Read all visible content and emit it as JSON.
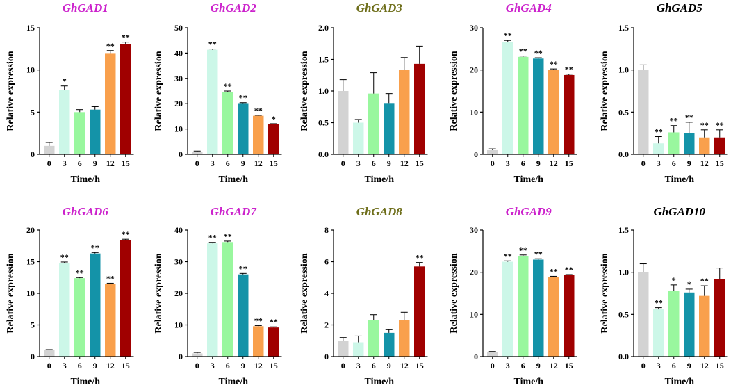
{
  "figure": {
    "colors": [
      "#d3d3d3",
      "#ccf7e8",
      "#99f79e",
      "#1493a8",
      "#f9a04c",
      "#a00000"
    ],
    "title_colors": {
      "magenta": "#cc22cc",
      "olive": "#6e6e1a",
      "black": "#000000"
    }
  },
  "chart_data": [
    {
      "type": "bar",
      "title": "GhGAD1",
      "title_color": "magenta",
      "xlabel": "Time/h",
      "ylabel": "Relative expression",
      "categories": [
        "0",
        "3",
        "6",
        "9",
        "12",
        "15"
      ],
      "values": [
        1.0,
        7.6,
        5.0,
        5.3,
        12.0,
        13.1
      ],
      "errors": [
        0.4,
        0.5,
        0.3,
        0.35,
        0.3,
        0.2
      ],
      "significance": [
        "",
        "*",
        "",
        "",
        "**",
        "**"
      ],
      "ylim": [
        0,
        15
      ],
      "yticks": [
        0,
        5,
        10,
        15
      ],
      "ytick_labels": [
        "0",
        "5",
        "10",
        "15"
      ]
    },
    {
      "type": "bar",
      "title": "GhGAD2",
      "title_color": "magenta",
      "xlabel": "Time/h",
      "ylabel": "Relative expression",
      "categories": [
        "0",
        "3",
        "6",
        "9",
        "12",
        "15"
      ],
      "values": [
        1.0,
        41.3,
        24.7,
        20.2,
        15.2,
        11.9
      ],
      "errors": [
        0.3,
        0.3,
        0.3,
        0.2,
        0.2,
        0.2
      ],
      "significance": [
        "",
        "**",
        "**",
        "**",
        "**",
        "*"
      ],
      "ylim": [
        0,
        50
      ],
      "yticks": [
        0,
        10,
        20,
        30,
        40,
        50
      ],
      "ytick_labels": [
        "0",
        "10",
        "20",
        "30",
        "40",
        "50"
      ]
    },
    {
      "type": "bar",
      "title": "GhGAD3",
      "title_color": "olive",
      "xlabel": "Time/h",
      "ylabel": "Relative expression",
      "categories": [
        "0",
        "3",
        "6",
        "9",
        "12",
        "15"
      ],
      "values": [
        1.0,
        0.5,
        0.96,
        0.81,
        1.33,
        1.43
      ],
      "errors": [
        0.18,
        0.05,
        0.33,
        0.15,
        0.2,
        0.28
      ],
      "significance": [
        "",
        "",
        "",
        "",
        "",
        ""
      ],
      "ylim": [
        0,
        2.0
      ],
      "yticks": [
        0,
        0.5,
        1.0,
        1.5,
        2.0
      ],
      "ytick_labels": [
        "0.0",
        "0.5",
        "1.0",
        "1.5",
        "2.0"
      ]
    },
    {
      "type": "bar",
      "title": "GhGAD4",
      "title_color": "magenta",
      "xlabel": "Time/h",
      "ylabel": "Relative expression",
      "categories": [
        "0",
        "3",
        "6",
        "9",
        "12",
        "15"
      ],
      "values": [
        1.0,
        26.7,
        23.1,
        22.7,
        20.1,
        18.8
      ],
      "errors": [
        0.3,
        0.3,
        0.2,
        0.2,
        0.15,
        0.2
      ],
      "significance": [
        "",
        "**",
        "**",
        "**",
        "**",
        "**"
      ],
      "ylim": [
        0,
        30
      ],
      "yticks": [
        0,
        10,
        20,
        30
      ],
      "ytick_labels": [
        "0",
        "10",
        "20",
        "30"
      ]
    },
    {
      "type": "bar",
      "title": "GhGAD5",
      "title_color": "black",
      "xlabel": "Time/h",
      "ylabel": "Relative expression",
      "categories": [
        "0",
        "3",
        "6",
        "9",
        "12",
        "15"
      ],
      "values": [
        1.0,
        0.13,
        0.26,
        0.25,
        0.2,
        0.2
      ],
      "errors": [
        0.06,
        0.08,
        0.08,
        0.13,
        0.09,
        0.09
      ],
      "significance": [
        "",
        "**",
        "**",
        "**",
        "**",
        "**"
      ],
      "ylim": [
        0,
        1.5
      ],
      "yticks": [
        0,
        0.5,
        1.0,
        1.5
      ],
      "ytick_labels": [
        "0.0",
        "0.5",
        "1.0",
        "1.5"
      ]
    },
    {
      "type": "bar",
      "title": "GhGAD6",
      "title_color": "magenta",
      "xlabel": "Time/h",
      "ylabel": "Relative expression",
      "categories": [
        "0",
        "3",
        "6",
        "9",
        "12",
        "15"
      ],
      "values": [
        1.0,
        14.8,
        12.4,
        16.3,
        11.5,
        18.4
      ],
      "errors": [
        0.1,
        0.15,
        0.1,
        0.15,
        0.1,
        0.15
      ],
      "significance": [
        "",
        "**",
        "**",
        "**",
        "**",
        "**"
      ],
      "ylim": [
        0,
        20
      ],
      "yticks": [
        0,
        5,
        10,
        15,
        20
      ],
      "ytick_labels": [
        "0",
        "5",
        "10",
        "15",
        "20"
      ]
    },
    {
      "type": "bar",
      "title": "GhGAD7",
      "title_color": "magenta",
      "xlabel": "Time/h",
      "ylabel": "Relative expression",
      "categories": [
        "0",
        "3",
        "6",
        "9",
        "12",
        "15"
      ],
      "values": [
        1.0,
        35.8,
        36.2,
        26.0,
        9.6,
        9.2
      ],
      "errors": [
        0.3,
        0.3,
        0.3,
        0.3,
        0.2,
        0.2
      ],
      "significance": [
        "",
        "**",
        "**",
        "**",
        "**",
        "**"
      ],
      "ylim": [
        0,
        40
      ],
      "yticks": [
        0,
        10,
        20,
        30,
        40
      ],
      "ytick_labels": [
        "0",
        "10",
        "20",
        "30",
        "40"
      ]
    },
    {
      "type": "bar",
      "title": "GhGAD8",
      "title_color": "olive",
      "xlabel": "Time/h",
      "ylabel": "Relative expression",
      "categories": [
        "0",
        "3",
        "6",
        "9",
        "12",
        "15"
      ],
      "values": [
        1.0,
        0.9,
        2.3,
        1.5,
        2.3,
        5.7
      ],
      "errors": [
        0.2,
        0.4,
        0.35,
        0.2,
        0.5,
        0.25
      ],
      "significance": [
        "",
        "",
        "",
        "",
        "",
        "**"
      ],
      "ylim": [
        0,
        8
      ],
      "yticks": [
        0,
        2,
        4,
        6,
        8
      ],
      "ytick_labels": [
        "0",
        "2",
        "4",
        "6",
        "8"
      ]
    },
    {
      "type": "bar",
      "title": "GhGAD9",
      "title_color": "magenta",
      "xlabel": "Time/h",
      "ylabel": "Relative expression",
      "categories": [
        "0",
        "3",
        "6",
        "9",
        "12",
        "15"
      ],
      "values": [
        1.0,
        22.5,
        23.9,
        23.0,
        18.9,
        19.3
      ],
      "errors": [
        0.2,
        0.2,
        0.2,
        0.2,
        0.15,
        0.15
      ],
      "significance": [
        "",
        "**",
        "**",
        "**",
        "**",
        "**"
      ],
      "ylim": [
        0,
        30
      ],
      "yticks": [
        0,
        10,
        20,
        30
      ],
      "ytick_labels": [
        "0",
        "10",
        "20",
        "30"
      ]
    },
    {
      "type": "bar",
      "title": "GhGAD10",
      "title_color": "black",
      "xlabel": "Time/h",
      "ylabel": "Relative expression",
      "categories": [
        "0",
        "3",
        "6",
        "9",
        "12",
        "15"
      ],
      "values": [
        1.0,
        0.56,
        0.78,
        0.76,
        0.72,
        0.92
      ],
      "errors": [
        0.1,
        0.02,
        0.07,
        0.04,
        0.12,
        0.13
      ],
      "significance": [
        "",
        "**",
        "*",
        "*",
        "**",
        ""
      ],
      "ylim": [
        0,
        1.5
      ],
      "yticks": [
        0,
        0.5,
        1.0,
        1.5
      ],
      "ytick_labels": [
        "0.0",
        "0.5",
        "1.0",
        "1.5"
      ]
    }
  ]
}
